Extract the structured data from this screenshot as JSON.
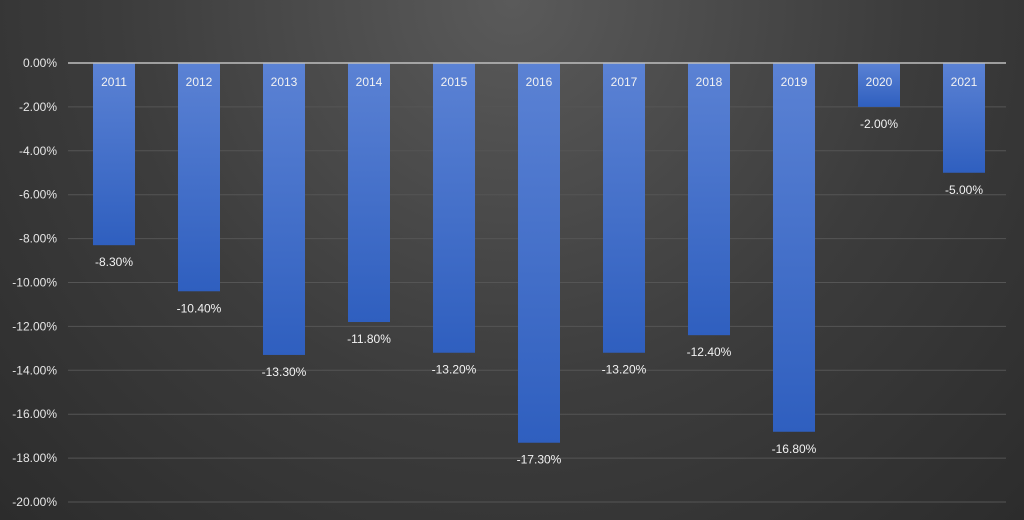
{
  "chart_data": {
    "type": "bar",
    "categories": [
      "2011",
      "2012",
      "2013",
      "2014",
      "2015",
      "2016",
      "2017",
      "2018",
      "2019",
      "2020",
      "2021"
    ],
    "values": [
      -8.3,
      -10.4,
      -13.3,
      -11.8,
      -13.2,
      -17.3,
      -13.2,
      -12.4,
      -16.8,
      -2.0,
      -5.0
    ],
    "value_labels": [
      "-8.30%",
      "-10.40%",
      "-13.30%",
      "-11.80%",
      "-13.20%",
      "-17.30%",
      "-13.20%",
      "-12.40%",
      "-16.80%",
      "-2.00%",
      "-5.00%"
    ],
    "ylim": [
      -20,
      0
    ],
    "yticks": [
      0,
      -2,
      -4,
      -6,
      -8,
      -10,
      -12,
      -14,
      -16,
      -18,
      -20
    ],
    "ytick_labels": [
      "0.00%",
      "-2.00%",
      "-4.00%",
      "-6.00%",
      "-8.00%",
      "-10.00%",
      "-12.00%",
      "-14.00%",
      "-16.00%",
      "-18.00%",
      "-20.00%"
    ],
    "title": "",
    "xlabel": "",
    "ylabel": "",
    "grid": true,
    "legend": "none",
    "colors": {
      "bar_top": "#5b82d4",
      "bar_bottom": "#2f5fbf",
      "background": "#3c3c3c"
    }
  }
}
